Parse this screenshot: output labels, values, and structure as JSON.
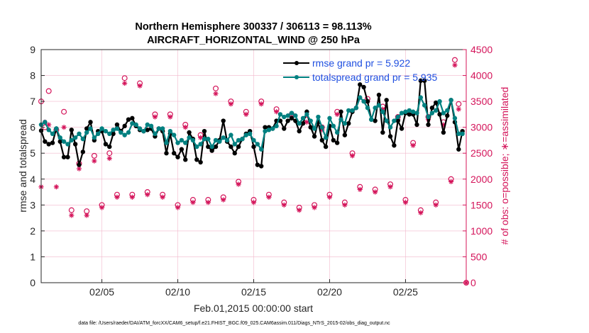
{
  "chart_data": {
    "type": "line",
    "title_line1": "Northern Hemisphere 300337 / 306113 = 98.113%",
    "title_line2": "AIRCRAFT_HORIZONTAL_WIND @ 250 hPa",
    "xlabel": "Feb.01,2015 00:00:00 start",
    "ylabel_left": "rmse and totalspread",
    "ylabel_right": "# of obs: o=possible; ∗=assimilated",
    "xlim": [
      1,
      29
    ],
    "ylim_left": [
      0,
      9
    ],
    "ylim_right": [
      0,
      4500
    ],
    "x_ticks": [
      5,
      10,
      15,
      20,
      25
    ],
    "x_tick_labels": [
      "02/05",
      "02/10",
      "02/15",
      "02/20",
      "02/25"
    ],
    "y_left_ticks": [
      "0",
      "1",
      "2",
      "3",
      "4",
      "5",
      "6",
      "7",
      "8",
      "9"
    ],
    "y_right_ticks": [
      "0",
      "500",
      "1000",
      "1500",
      "2000",
      "2500",
      "3000",
      "3500",
      "4000",
      "4500"
    ],
    "legend": [
      "rmse grand pr = 5.922",
      "totalspread grand pr = 5.935"
    ],
    "footer": "data file: /Users/raeder/DAI/ATM_forcXX/CAM6_setup/f.e21.FHIST_BGC.f09_025.CAM6assim.011/Diags_NTrS_2015-02/obs_diag_output.nc",
    "colors": {
      "rmse": "#000000",
      "spread": "#008080",
      "obs": "#d4145a",
      "legend_text": "#1f4fe0"
    },
    "x": [
      1.0,
      1.25,
      1.5,
      1.75,
      2.0,
      2.25,
      2.5,
      2.75,
      3.0,
      3.25,
      3.5,
      3.75,
      4.0,
      4.25,
      4.5,
      4.75,
      5.0,
      5.25,
      5.5,
      5.75,
      6.0,
      6.25,
      6.5,
      6.75,
      7.0,
      7.25,
      7.5,
      7.75,
      8.0,
      8.25,
      8.5,
      8.75,
      9.0,
      9.25,
      9.5,
      9.75,
      10.0,
      10.25,
      10.5,
      10.75,
      11.0,
      11.25,
      11.5,
      11.75,
      12.0,
      12.25,
      12.5,
      12.75,
      13.0,
      13.25,
      13.5,
      13.75,
      14.0,
      14.25,
      14.5,
      14.75,
      15.0,
      15.25,
      15.5,
      15.75,
      16.0,
      16.25,
      16.5,
      16.75,
      17.0,
      17.25,
      17.5,
      17.75,
      18.0,
      18.25,
      18.5,
      18.75,
      19.0,
      19.25,
      19.5,
      19.75,
      20.0,
      20.25,
      20.5,
      20.75,
      21.0,
      21.25,
      21.5,
      21.75,
      22.0,
      22.25,
      22.5,
      22.75,
      23.0,
      23.25,
      23.5,
      23.75,
      24.0,
      24.25,
      24.5,
      24.75,
      25.0,
      25.25,
      25.5,
      25.75,
      26.0,
      26.25,
      26.5,
      26.75,
      27.0,
      27.25,
      27.5,
      27.75,
      28.0,
      28.25,
      28.5,
      28.75
    ],
    "series": [
      {
        "name": "rmse",
        "values": [
          5.87,
          5.45,
          5.35,
          5.4,
          5.95,
          5.45,
          4.85,
          4.85,
          5.9,
          5.35,
          4.55,
          5.05,
          5.95,
          6.2,
          5.5,
          5.85,
          5.85,
          5.35,
          5.25,
          5.75,
          6.1,
          5.85,
          6.05,
          6.3,
          6.35,
          6.05,
          5.9,
          5.85,
          5.9,
          5.95,
          5.65,
          5.95,
          5.85,
          5.0,
          5.75,
          5.0,
          4.85,
          5.15,
          4.75,
          5.8,
          5.55,
          4.75,
          4.65,
          5.85,
          5.25,
          5.1,
          5.25,
          5.5,
          6.25,
          5.45,
          5.25,
          5.0,
          5.25,
          5.55,
          5.75,
          5.85,
          5.25,
          4.55,
          4.5,
          6.0,
          6.0,
          5.95,
          6.25,
          6.25,
          5.95,
          6.25,
          6.35,
          6.25,
          5.85,
          6.15,
          6.6,
          6.0,
          5.65,
          6.2,
          5.5,
          5.25,
          6.05,
          5.5,
          5.4,
          6.6,
          5.7,
          6.15,
          6.6,
          6.75,
          7.65,
          7.55,
          7.0,
          6.3,
          6.25,
          7.25,
          5.8,
          7.05,
          5.65,
          5.3,
          6.25,
          5.95,
          6.55,
          6.5,
          6.5,
          6.1,
          7.8,
          7.8,
          6.1,
          6.75,
          6.95,
          6.5,
          5.8,
          6.45,
          7.05,
          6.2,
          5.15,
          5.85
        ]
      },
      {
        "name": "totalspread",
        "values": [
          6.1,
          6.2,
          5.9,
          5.75,
          5.95,
          5.6,
          5.45,
          5.35,
          5.5,
          5.6,
          5.75,
          5.55,
          5.8,
          5.95,
          5.6,
          5.75,
          5.95,
          5.85,
          5.75,
          5.9,
          5.95,
          5.8,
          5.7,
          5.8,
          6.15,
          6.1,
          5.95,
          5.85,
          6.1,
          6.05,
          5.75,
          5.95,
          5.95,
          5.4,
          5.85,
          5.7,
          5.4,
          5.5,
          5.4,
          5.6,
          5.5,
          5.25,
          5.35,
          5.55,
          5.55,
          5.25,
          5.5,
          5.45,
          5.6,
          5.5,
          5.7,
          5.35,
          5.5,
          5.55,
          5.7,
          5.75,
          5.5,
          5.35,
          5.15,
          5.85,
          5.9,
          5.95,
          6.05,
          6.5,
          6.4,
          6.45,
          6.55,
          6.45,
          6.15,
          6.35,
          6.5,
          6.25,
          5.95,
          6.4,
          6.0,
          5.6,
          6.35,
          6.05,
          5.8,
          6.3,
          6.15,
          6.65,
          6.65,
          6.75,
          7.15,
          7.0,
          6.75,
          6.3,
          6.75,
          6.85,
          6.6,
          6.25,
          6.0,
          6.25,
          6.4,
          6.55,
          6.6,
          6.65,
          6.6,
          6.55,
          7.15,
          6.85,
          6.4,
          6.55,
          6.65,
          7.0,
          6.55,
          6.65,
          7.05,
          6.35,
          5.75,
          5.75
        ]
      }
    ],
    "obs_x": [
      1.0,
      1.25,
      1.5,
      2.0,
      2.5,
      3.0,
      3.5,
      4.0,
      4.5,
      5.0,
      5.5,
      6.0,
      6.5,
      7.0,
      7.5,
      8.0,
      8.5,
      9.0,
      9.5,
      10.0,
      10.5,
      11.0,
      11.5,
      12.0,
      12.5,
      13.0,
      13.5,
      14.0,
      14.5,
      15.0,
      15.5,
      16.0,
      16.5,
      17.0,
      17.5,
      18.0,
      18.5,
      19.0,
      19.5,
      20.0,
      20.5,
      21.0,
      21.5,
      22.0,
      22.5,
      23.0,
      23.5,
      24.0,
      24.5,
      25.0,
      25.5,
      26.0,
      26.5,
      27.0,
      27.5,
      28.0,
      28.25,
      28.5,
      29.0
    ],
    "obs_hi": [
      3500,
      3000,
      3700,
      2950,
      3300,
      1400,
      2300,
      1380,
      2450,
      1500,
      2500,
      1700,
      3950,
      1700,
      3850,
      1750,
      3250,
      1700,
      3250,
      1500,
      3050,
      1600,
      2850,
      1600,
      3750,
      1650,
      3500,
      1950,
      3300,
      1600,
      3500,
      1700,
      3350,
      1550,
      3250,
      1450,
      3150,
      1500,
      3000,
      1700,
      3300,
      1550,
      2500,
      1850,
      3550,
      1800,
      3400,
      1900,
      3200,
      1600,
      2700,
      1400,
      3200,
      1550,
      3100,
      2000,
      4300,
      3450,
      0
    ],
    "obs_lo": [
      1850,
      3100,
      3050,
      1850,
      3000,
      1300,
      2200,
      1300,
      2350,
      1450,
      2400,
      1650,
      3850,
      1650,
      3800,
      1700,
      3200,
      1650,
      3200,
      1450,
      3000,
      1550,
      2800,
      1550,
      3650,
      1600,
      3450,
      1900,
      3250,
      1550,
      3450,
      1650,
      3300,
      1500,
      3200,
      1400,
      3100,
      1450,
      2950,
      1650,
      3250,
      1500,
      2450,
      1800,
      3500,
      1750,
      3350,
      1850,
      3150,
      1550,
      2650,
      1350,
      3150,
      1500,
      3050,
      1950,
      4200,
      3350,
      0
    ]
  }
}
